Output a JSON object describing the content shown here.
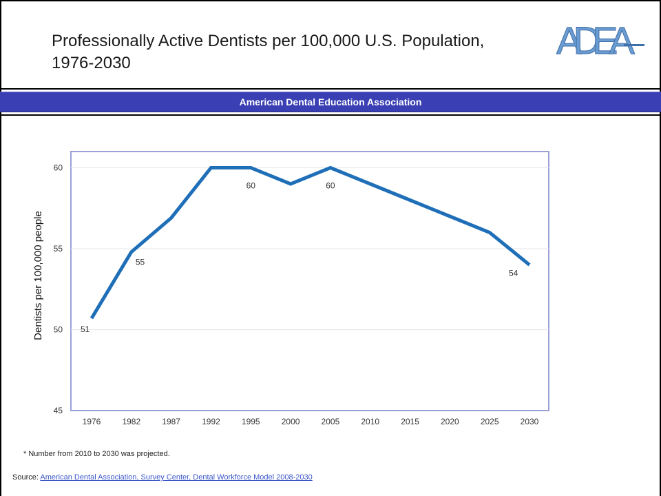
{
  "header": {
    "title_line1": "Professionally Active Dentists per 100,000 U.S. Population,",
    "title_line2": "1976-2030",
    "logo_text": "ADEA"
  },
  "banner": {
    "text": "American Dental Education Association"
  },
  "colors": {
    "banner": "#3a3fb3",
    "line": "#1f6fb8",
    "logo": "#6a9bd1",
    "link": "#3a56c9"
  },
  "chart_data": {
    "type": "line",
    "title": "",
    "xlabel": "",
    "ylabel": "Dentists per 100,000 people",
    "categories": [
      "1976",
      "1982",
      "1987",
      "1992",
      "1995",
      "2000",
      "2005",
      "2010",
      "2015",
      "2020",
      "2025",
      "2030"
    ],
    "series": [
      {
        "values": [
          50.7,
          54.8,
          56.9,
          60,
          60,
          59,
          60,
          59,
          58,
          57,
          56,
          54
        ]
      }
    ],
    "data_labels": [
      {
        "index": 0,
        "text": "51"
      },
      {
        "index": 1,
        "text": "55"
      },
      {
        "index": 4,
        "text": "60"
      },
      {
        "index": 6,
        "text": "60"
      },
      {
        "index": 11,
        "text": "54"
      }
    ],
    "yticks": [
      "45",
      "50",
      "55",
      "60"
    ],
    "ylim": [
      45,
      61
    ],
    "grid": true
  },
  "footnote": "* Number from 2010 to 2030 was projected.",
  "source": {
    "prefix": "Source: ",
    "link_text": "American Dental Association, Survey Center, Dental Workforce Model 2008-2030"
  }
}
